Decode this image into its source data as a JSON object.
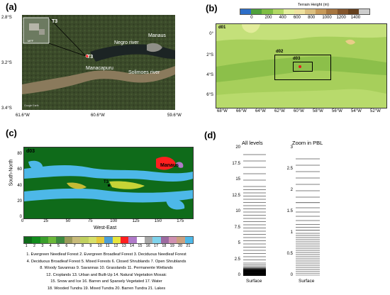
{
  "panel_a": {
    "label": "(a)",
    "lat_ticks": [
      "2.8°S",
      "3.2°S",
      "3.4°S"
    ],
    "lon_ticks": [
      "61.6°W",
      "60.6°W",
      "59.6°W"
    ],
    "labels": {
      "negro": "Negro river",
      "manaus": "Manaus",
      "solimoes": "Solimoes river",
      "manacapuru": "Manacapuru",
      "t3": "T3",
      "t3_inset": "T3",
      "inset_text": "MFF",
      "credit": "Google Earth"
    }
  },
  "panel_b": {
    "label": "(b)",
    "colorbar_title": "Terrain Height  (m)",
    "colorbar_ticks": [
      "0",
      "200",
      "400",
      "600",
      "800",
      "1000",
      "1200",
      "1400"
    ],
    "colorbar_colors": [
      "#2d6ec8",
      "#4fa03c",
      "#7fbe44",
      "#b2d865",
      "#e4ee9e",
      "#efe2a0",
      "#dcc080",
      "#c79a5a",
      "#a77640",
      "#85562c",
      "#65401e",
      "#cccccc"
    ],
    "domains": [
      "d01",
      "d02",
      "d03"
    ],
    "lat_ticks": [
      "0°",
      "2°S",
      "4°S",
      "6°S"
    ],
    "lon_ticks": [
      "68°W",
      "66°W",
      "64°W",
      "62°W",
      "60°W",
      "58°W",
      "56°W",
      "54°W",
      "52°W"
    ]
  },
  "panel_c": {
    "label": "(c)",
    "domain": "d03",
    "ylabel": "South-North",
    "xlabel": "West-East",
    "x_ticks": [
      "0",
      "25",
      "50",
      "75",
      "100",
      "125",
      "150",
      "175"
    ],
    "y_ticks": [
      "0",
      "20",
      "40",
      "60",
      "80"
    ],
    "marker_label": "T3",
    "city_label": "Manaus",
    "class_numbers": [
      "1",
      "2",
      "3",
      "4",
      "5",
      "6",
      "7",
      "8",
      "9",
      "10",
      "11",
      "12",
      "13",
      "14",
      "15",
      "16",
      "17",
      "18",
      "19",
      "20",
      "21"
    ],
    "class_colors": [
      "#0f6b1a",
      "#118c1d",
      "#3a9e2c",
      "#6bb83a",
      "#3d8a3e",
      "#9a9a5a",
      "#c8bb7a",
      "#c0d060",
      "#d7e06a",
      "#e6c93a",
      "#4c9fd6",
      "#e8e53c",
      "#ff1f1f",
      "#b07ac9",
      "#ffffff",
      "#a7a7a7",
      "#7fd3ec",
      "#9c6aa0",
      "#d090b0",
      "#caa080",
      "#4db8e8"
    ],
    "legend_lines": [
      "1. Evergreen Needleaf Forest 2. Evergreen Broadleaf Forest 3. Deciduous Needleaf Forest",
      "4. Deciduous Broadleaf Forest 5. Mixed Forests 6. Closed Shrublands 7. Open Shrublands",
      "8. Woody Savannas 9. Savannas 10. Grasslands 11. Permanente Wetlands",
      "12. Croplands 13. Urban and Built-Up 14. Natural Vegetation Mosaic",
      "15. Snow and Ice 16. Barren and Sparsely Vegetated 17. Water",
      "18. Wooded Tundra 19. Mixed Tundra 20. Barren Tundra 21. Lakes"
    ]
  },
  "panel_d": {
    "label": "(d)",
    "col1_title": "All levels",
    "col2_title": "Zoom in PBL",
    "col1_ticks": [
      "20",
      "17.5",
      "15",
      "12.5",
      "10",
      "7.5",
      "5",
      "2.5",
      "0"
    ],
    "col2_ticks": [
      "3",
      "2.5",
      "2",
      "1.5",
      "1",
      "0.5",
      "0"
    ],
    "surface_label": "Surface",
    "levels_all": [
      0.0,
      0.03,
      0.06,
      0.09,
      0.12,
      0.15,
      0.18,
      0.21,
      0.24,
      0.27,
      0.3,
      0.33,
      0.36,
      0.39,
      0.42,
      0.45,
      0.48,
      0.51,
      0.54,
      0.57,
      0.6,
      0.63,
      0.66,
      0.69,
      0.72,
      0.75,
      0.78,
      0.81,
      0.84,
      0.87,
      0.9,
      0.93,
      0.96,
      1.0,
      1.05,
      1.1,
      1.2,
      1.3,
      1.5,
      1.75,
      2.0,
      2.5,
      3.0,
      3.5,
      4.0,
      4.5,
      5.0,
      5.5,
      6.0,
      6.5,
      7.0,
      7.5,
      8.0,
      8.5,
      9.0,
      9.5,
      10.0,
      10.5,
      11.0,
      11.5,
      12.0,
      12.5,
      13.0,
      13.5,
      14.0,
      15.0,
      16.0,
      17.0,
      18.0,
      19.0
    ],
    "levels_pbl": [
      0.0,
      0.05,
      0.1,
      0.15,
      0.2,
      0.25,
      0.3,
      0.35,
      0.4,
      0.45,
      0.5,
      0.55,
      0.6,
      0.65,
      0.7,
      0.75,
      0.8,
      0.85,
      0.9,
      0.95,
      1.0,
      1.07,
      1.14,
      1.21,
      1.3,
      1.4,
      1.5,
      1.6,
      1.72,
      1.85,
      2.0,
      2.15,
      2.3,
      2.45,
      2.6,
      2.75
    ]
  }
}
